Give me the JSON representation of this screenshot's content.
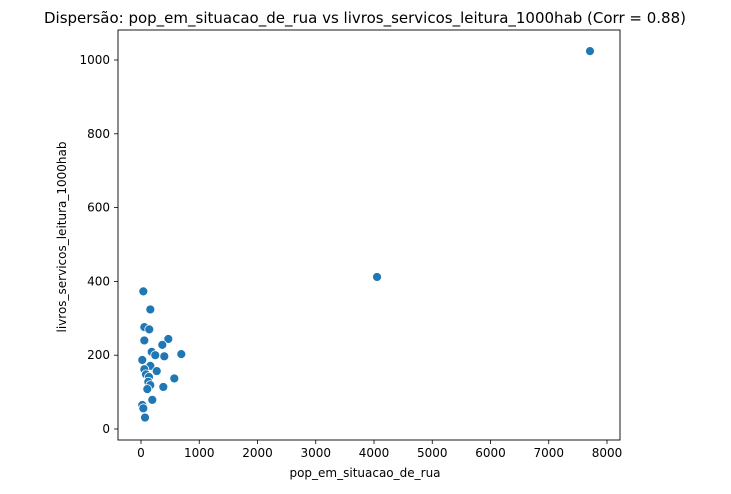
{
  "chart_data": {
    "type": "scatter",
    "title": "Dispersão: pop_em_situacao_de_rua vs livros_servicos_leitura_1000hab (Corr = 0.88)",
    "xlabel": "pop_em_situacao_de_rua",
    "ylabel": "livros_servicos_leitura_1000hab",
    "xlim": [
      -400,
      8100
    ],
    "ylim": [
      -25,
      1110
    ],
    "xticks": [
      0,
      1000,
      2000,
      3000,
      4000,
      5000,
      6000,
      7000,
      8000
    ],
    "yticks": [
      0,
      200,
      400,
      600,
      800,
      1000
    ],
    "grid": false,
    "color": "#1f77b4",
    "points": [
      [
        40,
        373
      ],
      [
        160,
        324
      ],
      [
        57,
        276
      ],
      [
        142,
        270
      ],
      [
        57,
        240
      ],
      [
        469,
        244
      ],
      [
        366,
        228
      ],
      [
        184,
        209
      ],
      [
        245,
        200
      ],
      [
        400,
        197
      ],
      [
        692,
        203
      ],
      [
        22,
        187
      ],
      [
        160,
        171
      ],
      [
        57,
        162
      ],
      [
        270,
        157
      ],
      [
        86,
        148
      ],
      [
        137,
        141
      ],
      [
        572,
        137
      ],
      [
        125,
        128
      ],
      [
        160,
        119
      ],
      [
        383,
        114
      ],
      [
        108,
        108
      ],
      [
        194,
        79
      ],
      [
        22,
        65
      ],
      [
        40,
        56
      ],
      [
        69,
        31
      ],
      [
        4052,
        412
      ],
      [
        7708,
        1024
      ]
    ]
  }
}
